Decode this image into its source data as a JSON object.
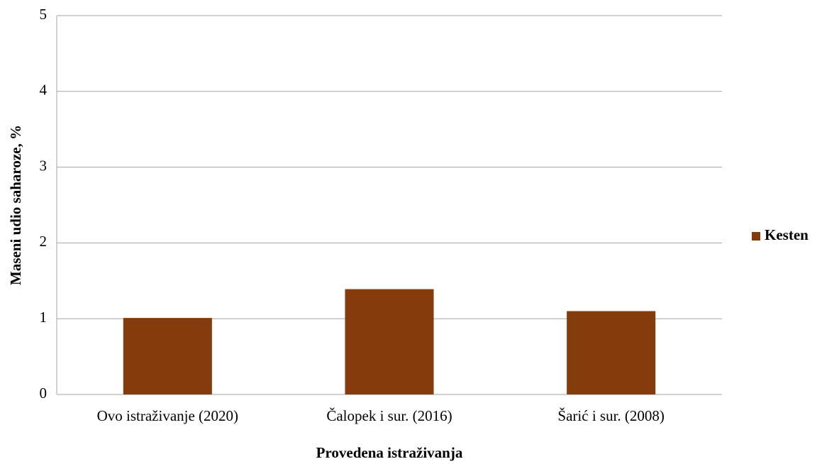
{
  "chart_data": {
    "type": "bar",
    "categories": [
      "Ovo istraživanje (2020)",
      "Čalopek i sur. (2016)",
      "Šarić i sur. (2008)"
    ],
    "series": [
      {
        "name": "Kesten",
        "color": "#843c0c",
        "values": [
          1.01,
          1.39,
          1.1
        ]
      }
    ],
    "ylim": [
      0,
      5
    ],
    "yticks": [
      0,
      1,
      2,
      3,
      4,
      5
    ],
    "grid": true,
    "xlabel": "Provedena istraživanja",
    "ylabel": "Maseni udio saharoze, %",
    "legend": "right"
  }
}
